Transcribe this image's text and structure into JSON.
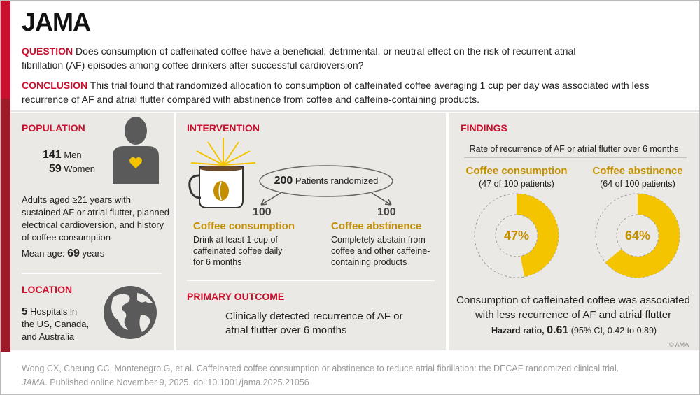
{
  "header": {
    "logo": "JAMA",
    "question_label": "QUESTION",
    "question": "Does consumption of caffeinated coffee have a beneficial, detrimental, or neutral effect on the risk of recurrent atrial fibrillation (AF) episodes among coffee drinkers after successful cardioversion?",
    "conclusion_label": "CONCLUSION",
    "conclusion": "This trial found that randomized allocation to consumption of caffeinated coffee averaging 1 cup per day was associated with less recurrence of AF and atrial flutter compared with abstinence from coffee and caffeine-containing products."
  },
  "population": {
    "title": "POPULATION",
    "men": 141,
    "men_label": "Men",
    "women": 59,
    "women_label": "Women",
    "description": "Adults aged ≥21 years with sustained AF or atrial flutter, planned electrical cardioversion, and history of coffee consumption",
    "mean_age_label": "Mean age:",
    "mean_age": 69,
    "mean_age_unit": "years"
  },
  "location": {
    "title": "LOCATION",
    "count": 5,
    "text": "Hospitals in the US, Canada, and Australia"
  },
  "intervention": {
    "title": "INTERVENTION",
    "randomized": 200,
    "randomized_label": "Patients randomized",
    "arms": [
      {
        "n": 100,
        "name": "Coffee consumption",
        "description": "Drink at least 1 cup of caffeinated coffee daily for 6 months"
      },
      {
        "n": 100,
        "name": "Coffee abstinence",
        "description": "Completely abstain from coffee and other caffeine-containing products"
      }
    ]
  },
  "primary_outcome": {
    "title": "PRIMARY OUTCOME",
    "text": "Clinically detected recurrence of AF or atrial flutter over 6 months"
  },
  "findings": {
    "title": "FINDINGS",
    "subtitle": "Rate of recurrence of AF or atrial flutter over 6 months",
    "groups": [
      {
        "name": "Coffee consumption",
        "detail": "(47 of 100 patients)",
        "percent": 47,
        "percent_label": "47%"
      },
      {
        "name": "Coffee abstinence",
        "detail": "(64 of 100 patients)",
        "percent": 64,
        "percent_label": "64%"
      }
    ],
    "summary": "Consumption of caffeinated coffee was associated with less recurrence of AF and atrial flutter",
    "hr_label": "Hazard ratio,",
    "hr": 0.61,
    "ci": "(95% CI, 0.42 to 0.89)",
    "copyright": "© AMA"
  },
  "citation": {
    "line1": "Wong CX, Cheung CC, Montenegro G, et al. Caffeinated coffee consumption or abstinence to reduce atrial fibrillation: the DECAF randomized clinical trial.",
    "journal": "JAMA",
    "line2": ". Published online November 9, 2025. doi:10.1001/jama.2025.21056"
  }
}
